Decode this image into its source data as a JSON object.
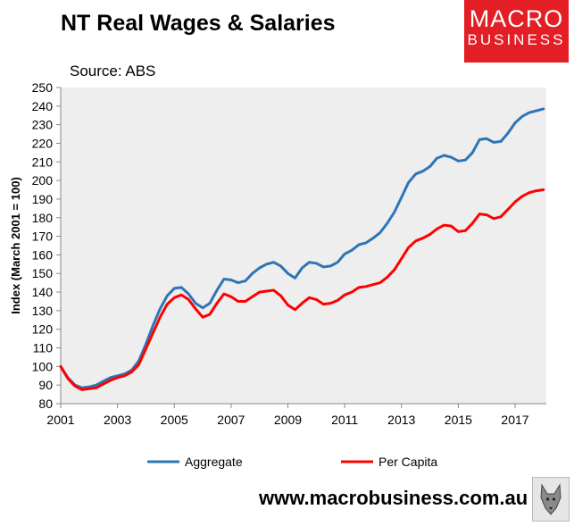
{
  "header": {
    "title": "NT Real Wages & Salaries",
    "source": "Source: ABS"
  },
  "logo": {
    "line1": "MACRO",
    "line2": "BUSINESS"
  },
  "footer": {
    "url": "www.macrobusiness.com.au"
  },
  "colors": {
    "aggregate": "#2e75b6",
    "per_capita": "#ff0000",
    "plot_background": "#eeeeee",
    "brand": "#e31e24"
  },
  "chart_data": {
    "type": "line",
    "title": "NT Real Wages & Salaries",
    "ylabel": "Index (March 2001 = 100)",
    "xlabel": "",
    "xlim": [
      2001.0,
      2018.1
    ],
    "ylim": [
      80,
      250
    ],
    "x_ticks": [
      2001,
      2003,
      2005,
      2007,
      2009,
      2011,
      2013,
      2015,
      2017
    ],
    "y_ticks": [
      80,
      90,
      100,
      110,
      120,
      130,
      140,
      150,
      160,
      170,
      180,
      190,
      200,
      210,
      220,
      230,
      240,
      250
    ],
    "grid": false,
    "legend_position": "bottom",
    "x": [
      2001.0,
      2001.25,
      2001.5,
      2001.75,
      2002.0,
      2002.25,
      2002.5,
      2002.75,
      2003.0,
      2003.25,
      2003.5,
      2003.75,
      2004.0,
      2004.25,
      2004.5,
      2004.75,
      2005.0,
      2005.25,
      2005.5,
      2005.75,
      2006.0,
      2006.25,
      2006.5,
      2006.75,
      2007.0,
      2007.25,
      2007.5,
      2007.75,
      2008.0,
      2008.25,
      2008.5,
      2008.75,
      2009.0,
      2009.25,
      2009.5,
      2009.75,
      2010.0,
      2010.25,
      2010.5,
      2010.75,
      2011.0,
      2011.25,
      2011.5,
      2011.75,
      2012.0,
      2012.25,
      2012.5,
      2012.75,
      2013.0,
      2013.25,
      2013.5,
      2013.75,
      2014.0,
      2014.25,
      2014.5,
      2014.75,
      2015.0,
      2015.25,
      2015.5,
      2015.75,
      2016.0,
      2016.25,
      2016.5,
      2016.75,
      2017.0,
      2017.25,
      2017.5,
      2017.75,
      2018.0
    ],
    "series": [
      {
        "name": "Aggregate",
        "values": [
          100,
          94,
          90,
          88.5,
          89,
          90,
          92,
          94,
          95,
          96,
          98,
          103,
          112,
          122,
          131,
          138,
          142,
          142.5,
          139,
          134,
          131.5,
          134,
          141,
          147,
          146.5,
          145,
          146,
          150,
          153,
          155,
          156,
          154,
          150,
          147.5,
          153,
          156,
          155.5,
          153.5,
          154,
          156,
          160.5,
          162.5,
          165.5,
          166.5,
          169,
          172,
          177,
          183,
          191,
          199,
          203.5,
          205,
          207.5,
          212,
          213.5,
          212.5,
          210.5,
          211,
          215,
          222,
          222.5,
          220.5,
          221,
          225.5,
          231,
          234.5,
          236.5,
          237.5,
          238.5
        ]
      },
      {
        "name": "Per Capita",
        "values": [
          100,
          93.5,
          89.5,
          87.5,
          88,
          88.5,
          90.5,
          92.5,
          94,
          95,
          97,
          101,
          109.5,
          118,
          126.5,
          133.5,
          137,
          138.5,
          136,
          131,
          126.5,
          128,
          134,
          139,
          137.5,
          135,
          135,
          137.5,
          140,
          140.5,
          141,
          138,
          133,
          130.5,
          134,
          137,
          136,
          133.5,
          134,
          135.5,
          138.5,
          140,
          142.5,
          143,
          144,
          145,
          148,
          152,
          158,
          164,
          167.5,
          169,
          171,
          174,
          176,
          175.5,
          172.5,
          173,
          177,
          182,
          181.5,
          179.5,
          180.5,
          184.5,
          188.5,
          191.5,
          193.5,
          194.5,
          195
        ]
      }
    ]
  }
}
